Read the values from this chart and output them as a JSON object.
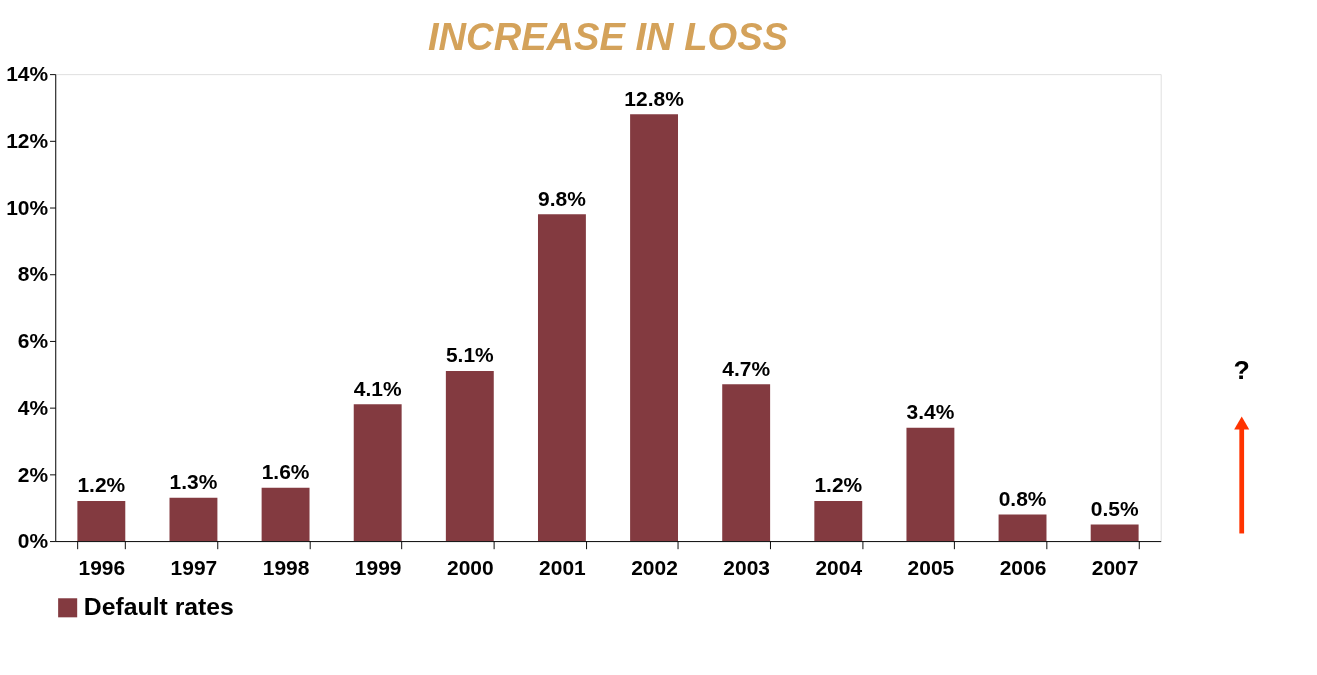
{
  "chart_data": {
    "type": "bar",
    "title": "INCREASE IN LOSS",
    "categories": [
      "1996",
      "1997",
      "1998",
      "1999",
      "2000",
      "2001",
      "2002",
      "2003",
      "2004",
      "2005",
      "2006",
      "2007"
    ],
    "series": [
      {
        "name": "Default rates",
        "color": "#833a40",
        "values": [
          1.2,
          1.3,
          1.6,
          4.1,
          5.1,
          9.8,
          12.8,
          4.7,
          1.2,
          3.4,
          0.8,
          0.5
        ],
        "value_labels": [
          "1.2%",
          "1.3%",
          "1.6%",
          "4.1%",
          "5.1%",
          "9.8%",
          "12.8%",
          "4.7%",
          "1.2%",
          "3.4%",
          "0.8%",
          "0.5%"
        ]
      }
    ],
    "ylim": [
      0,
      14
    ],
    "yticks": [
      {
        "value": 0,
        "label": "0%"
      },
      {
        "value": 2,
        "label": "2%"
      },
      {
        "value": 4,
        "label": "4%"
      },
      {
        "value": 6,
        "label": "6%"
      },
      {
        "value": 8,
        "label": "8%"
      },
      {
        "value": 10,
        "label": "10%"
      },
      {
        "value": 12,
        "label": "12%"
      },
      {
        "value": 14,
        "label": "14%"
      }
    ],
    "grid": false,
    "legend": "bottom",
    "annotations": [
      "?"
    ]
  }
}
